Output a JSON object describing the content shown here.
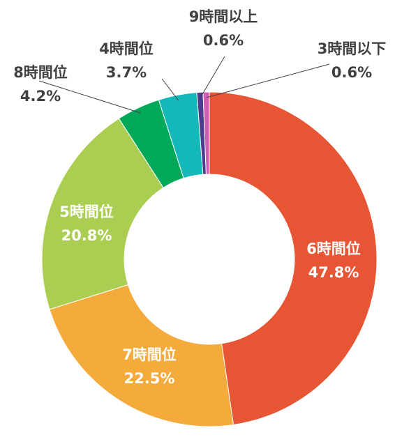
{
  "chart_data": {
    "type": "pie",
    "donut": true,
    "categories": [
      "6時間位",
      "7時間位",
      "5時間位",
      "8時間位",
      "4時間位",
      "9時間以上",
      "3時間以下"
    ],
    "values": [
      47.8,
      22.5,
      20.8,
      4.2,
      3.7,
      0.6,
      0.6
    ],
    "value_labels": [
      "47.8%",
      "22.5%",
      "20.8%",
      "4.2%",
      "3.7%",
      "0.6%",
      "0.6%"
    ],
    "colors": [
      "#E85534",
      "#F4AB3C",
      "#AACE52",
      "#00A859",
      "#14B8B8",
      "#4B3C8E",
      "#D55BB4"
    ],
    "legend": "none",
    "title": ""
  }
}
